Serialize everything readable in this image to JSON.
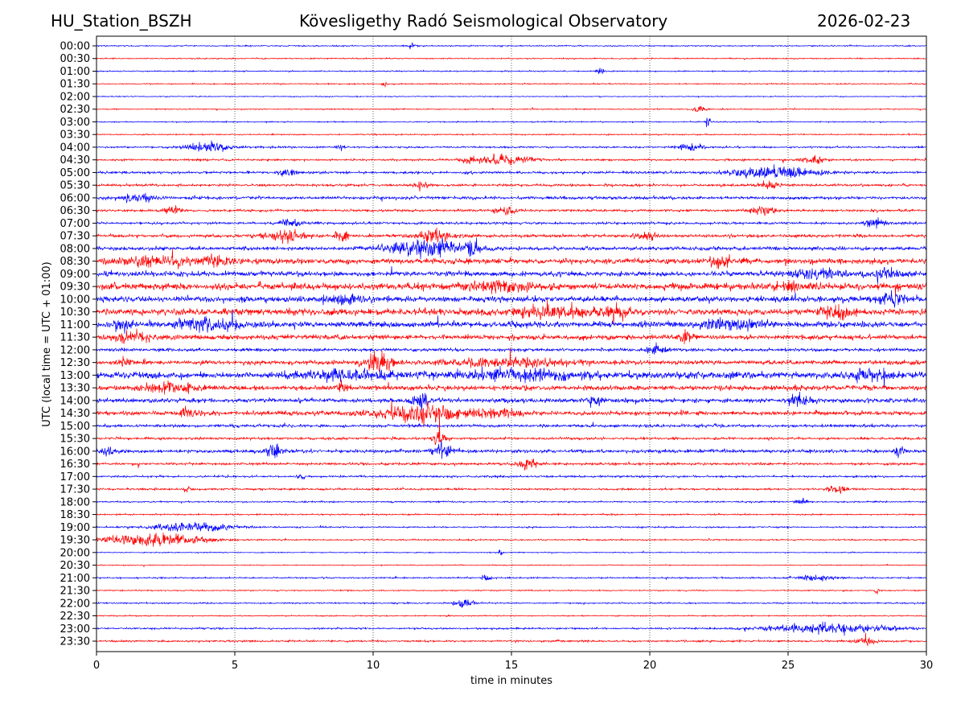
{
  "header": {
    "station": "HU_Station_BSZH",
    "observatory": "Kövesligethy Radó Seismological Observatory",
    "date": "2026-02-23"
  },
  "chart_data": {
    "type": "line",
    "title": "Kövesligethy Radó Seismological Observatory",
    "xlabel": "time in minutes",
    "ylabel": "UTC (local time = UTC + 01:00)",
    "xlim": [
      0,
      30
    ],
    "xticks": [
      "0",
      "5",
      "10",
      "15",
      "20",
      "25",
      "30"
    ],
    "grid": "vertical dotted at x ticks",
    "colors": {
      "even_rows": "#0000ff",
      "odd_rows": "#ff0000"
    },
    "rows": [
      {
        "label": "00:00",
        "noise": 0.5,
        "events": [
          [
            11.4,
            2,
            0.2
          ]
        ]
      },
      {
        "label": "00:30",
        "noise": 0.5,
        "events": []
      },
      {
        "label": "01:00",
        "noise": 0.5,
        "events": [
          [
            18.2,
            2,
            0.2
          ]
        ]
      },
      {
        "label": "01:30",
        "noise": 0.5,
        "events": [
          [
            10.4,
            2,
            0.1
          ]
        ]
      },
      {
        "label": "02:00",
        "noise": 0.4,
        "events": []
      },
      {
        "label": "02:30",
        "noise": 0.5,
        "events": [
          [
            21.8,
            2,
            0.3
          ]
        ]
      },
      {
        "label": "03:00",
        "noise": 0.5,
        "events": [
          [
            22.1,
            5,
            0.1
          ]
        ]
      },
      {
        "label": "03:30",
        "noise": 0.5,
        "events": []
      },
      {
        "label": "04:00",
        "noise": 0.7,
        "events": [
          [
            4,
            3,
            1.2
          ],
          [
            8.8,
            2,
            0.2
          ],
          [
            21.5,
            2,
            0.6
          ]
        ]
      },
      {
        "label": "04:30",
        "noise": 0.8,
        "events": [
          [
            14.7,
            3,
            1.5
          ],
          [
            13.5,
            2.5,
            0.3
          ],
          [
            25.9,
            2.5,
            0.6
          ]
        ]
      },
      {
        "label": "05:00",
        "noise": 1.0,
        "events": [
          [
            24.5,
            4,
            2
          ],
          [
            6.9,
            2.5,
            0.4
          ]
        ]
      },
      {
        "label": "05:30",
        "noise": 1.0,
        "events": [
          [
            11.8,
            3,
            0.3
          ],
          [
            24.3,
            2,
            0.6
          ]
        ]
      },
      {
        "label": "06:00",
        "noise": 1.2,
        "events": [
          [
            1.5,
            2,
            1
          ]
        ]
      },
      {
        "label": "06:30",
        "noise": 1.0,
        "events": [
          [
            2.7,
            2.5,
            0.4
          ],
          [
            14.8,
            2.5,
            0.5
          ],
          [
            24.1,
            2.5,
            0.6
          ]
        ]
      },
      {
        "label": "07:00",
        "noise": 1.0,
        "events": [
          [
            7,
            2.5,
            0.6
          ],
          [
            28.1,
            3,
            0.5
          ]
        ]
      },
      {
        "label": "07:30",
        "noise": 1.3,
        "events": [
          [
            6.8,
            4,
            1
          ],
          [
            12.3,
            3,
            1
          ],
          [
            8.9,
            3,
            0.4
          ],
          [
            19.9,
            2.5,
            0.5
          ]
        ]
      },
      {
        "label": "08:00",
        "noise": 1.5,
        "events": [
          [
            12,
            5,
            2
          ],
          [
            13.6,
            6,
            0.3
          ]
        ]
      },
      {
        "label": "08:30",
        "noise": 2.2,
        "events": [
          [
            2,
            3,
            1.5
          ],
          [
            4.3,
            3,
            1
          ],
          [
            22.6,
            3,
            0.6
          ]
        ]
      },
      {
        "label": "09:00",
        "noise": 2.0,
        "events": [
          [
            26,
            3,
            1.5
          ],
          [
            28.5,
            3,
            1
          ]
        ]
      },
      {
        "label": "09:30",
        "noise": 2.8,
        "events": [
          [
            14.5,
            3,
            1.5
          ],
          [
            25,
            3,
            0.5
          ]
        ]
      },
      {
        "label": "10:00",
        "noise": 2.4,
        "events": [
          [
            9,
            3,
            1
          ],
          [
            28.8,
            3,
            0.8
          ]
        ]
      },
      {
        "label": "10:30",
        "noise": 2.6,
        "events": [
          [
            16.5,
            3,
            2
          ],
          [
            18.8,
            3.5,
            0.6
          ],
          [
            26.8,
            3.5,
            0.8
          ]
        ]
      },
      {
        "label": "11:00",
        "noise": 2.4,
        "events": [
          [
            0.9,
            3,
            0.5
          ],
          [
            4,
            3.5,
            1.5
          ],
          [
            23,
            3,
            1.5
          ]
        ]
      },
      {
        "label": "11:30",
        "noise": 2.0,
        "events": [
          [
            1.3,
            3,
            1
          ],
          [
            21.3,
            3.5,
            0.3
          ]
        ]
      },
      {
        "label": "12:00",
        "noise": 1.3,
        "events": [
          [
            20.3,
            2.5,
            0.5
          ]
        ]
      },
      {
        "label": "12:30",
        "noise": 1.8,
        "events": [
          [
            10.2,
            6,
            0.7
          ],
          [
            1,
            2.5,
            0.3
          ],
          [
            15,
            2.5,
            3
          ]
        ]
      },
      {
        "label": "13:00",
        "noise": 2.8,
        "events": [
          [
            9,
            3,
            2
          ],
          [
            15,
            3,
            3
          ],
          [
            28,
            3,
            1
          ]
        ]
      },
      {
        "label": "13:30",
        "noise": 2.0,
        "events": [
          [
            2.5,
            3,
            1.5
          ],
          [
            8.9,
            3,
            0.3
          ]
        ]
      },
      {
        "label": "14:00",
        "noise": 1.8,
        "events": [
          [
            11.7,
            4,
            0.5
          ],
          [
            18,
            3,
            0.4
          ],
          [
            25.4,
            3,
            0.6
          ]
        ]
      },
      {
        "label": "14:30",
        "noise": 1.8,
        "events": [
          [
            11.8,
            6,
            2
          ],
          [
            3.3,
            3,
            0.5
          ],
          [
            14.5,
            3,
            1
          ]
        ]
      },
      {
        "label": "15:00",
        "noise": 1.2,
        "events": []
      },
      {
        "label": "15:30",
        "noise": 1.0,
        "events": [
          [
            12.4,
            4,
            0.4
          ]
        ]
      },
      {
        "label": "16:00",
        "noise": 1.4,
        "events": [
          [
            12.5,
            5,
            0.5
          ],
          [
            6.4,
            4,
            0.5
          ],
          [
            0.4,
            3,
            0.3
          ],
          [
            29,
            3,
            0.3
          ]
        ]
      },
      {
        "label": "16:30",
        "noise": 1.0,
        "events": [
          [
            15.6,
            3,
            0.5
          ]
        ]
      },
      {
        "label": "17:00",
        "noise": 0.8,
        "events": [
          [
            7.4,
            2,
            0.2
          ]
        ]
      },
      {
        "label": "17:30",
        "noise": 0.8,
        "events": [
          [
            26.8,
            2.5,
            0.5
          ],
          [
            3.3,
            2,
            0.2
          ]
        ]
      },
      {
        "label": "18:00",
        "noise": 0.6,
        "events": [
          [
            25.5,
            2,
            0.3
          ]
        ]
      },
      {
        "label": "18:30",
        "noise": 0.6,
        "events": []
      },
      {
        "label": "19:00",
        "noise": 0.6,
        "events": [
          [
            3.5,
            3,
            2
          ]
        ]
      },
      {
        "label": "19:30",
        "noise": 0.6,
        "events": [
          [
            2,
            4,
            2.5
          ]
        ]
      },
      {
        "label": "20:00",
        "noise": 0.4,
        "events": [
          [
            14.6,
            2,
            0.1
          ]
        ]
      },
      {
        "label": "20:30",
        "noise": 0.4,
        "events": []
      },
      {
        "label": "21:00",
        "noise": 0.6,
        "events": [
          [
            14.1,
            2.5,
            0.2
          ],
          [
            26,
            2,
            1
          ]
        ]
      },
      {
        "label": "21:30",
        "noise": 0.5,
        "events": [
          [
            28.2,
            2,
            0.1
          ]
        ]
      },
      {
        "label": "22:00",
        "noise": 0.6,
        "events": [
          [
            13.3,
            3,
            0.5
          ]
        ]
      },
      {
        "label": "22:30",
        "noise": 0.5,
        "events": []
      },
      {
        "label": "23:00",
        "noise": 0.7,
        "events": [
          [
            26.5,
            3,
            3
          ]
        ]
      },
      {
        "label": "23:30",
        "noise": 0.8,
        "events": [
          [
            27.8,
            2,
            0.5
          ]
        ]
      }
    ]
  }
}
